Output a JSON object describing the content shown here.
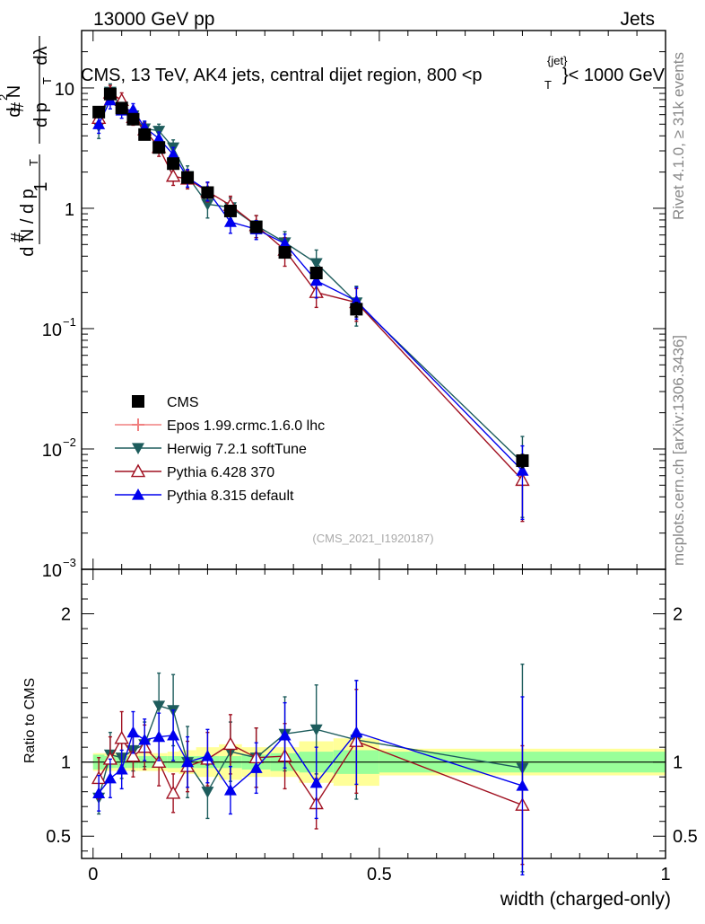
{
  "header": {
    "energy": "13000 GeV pp",
    "category": "Jets"
  },
  "side": {
    "rivet": "Rivet 4.1.0, ≥ 31k events",
    "mcplots": "mcplots.cern.ch [arXiv:1306.3436]"
  },
  "colors": {
    "cms": "#000000",
    "epos": "#f08080",
    "herwig": "#1d5c5c",
    "pythia6": "#a01020",
    "pythia8": "#0000ee",
    "band_inner": "#99ff99",
    "band_outer": "#ffff99"
  },
  "chart_data": [
    {
      "type": "scatter",
      "title_parts": [
        "CMS, 13 TeV, AK4 jets, central dijet region, 800 <p",
        "T",
        "{jet}",
        "}< 1000 GeV"
      ],
      "ylabel_parts": [
        "1",
        "d N / d p",
        "T",
        "#",
        "#",
        "d p",
        "T",
        "dλ",
        "d",
        "2",
        "N"
      ],
      "yscale": "log",
      "ylim": [
        0.001,
        30
      ],
      "xlim": [
        -0.02,
        1.0
      ],
      "yticks": [
        {
          "value": 0.001,
          "base": "10",
          "exp": "−3"
        },
        {
          "value": 0.01,
          "base": "10",
          "exp": "−2"
        },
        {
          "value": 0.1,
          "base": "10",
          "exp": "−1"
        },
        {
          "value": 1,
          "base": "1",
          "exp": ""
        },
        {
          "value": 10,
          "base": "10",
          "exp": ""
        }
      ],
      "watermark": "(CMS_2021_I1920187)",
      "x": [
        0.01,
        0.03,
        0.05,
        0.07,
        0.09,
        0.115,
        0.14,
        0.165,
        0.2,
        0.24,
        0.285,
        0.335,
        0.39,
        0.46,
        0.75
      ],
      "series": [
        {
          "name": "CMS",
          "key": "cms",
          "marker": "square",
          "values": [
            6.3,
            8.9,
            6.8,
            5.5,
            4.1,
            3.2,
            2.35,
            1.8,
            1.35,
            0.95,
            0.7,
            0.43,
            0.29,
            0.145,
            0.008
          ],
          "errors": [
            0.6,
            0.7,
            0.5,
            0.4,
            0.3,
            0.25,
            0.2,
            0.15,
            0.1,
            0.08,
            0.07,
            0.04,
            0.03,
            0.02,
            0.001
          ]
        },
        {
          "name": "Epos 1.99.crmc.1.6.0 lhc",
          "key": "epos",
          "marker": "cross",
          "values": [],
          "errors": []
        },
        {
          "name": "Herwig 7.2.1 softTune",
          "key": "herwig",
          "marker": "triangle-down",
          "values": [
            4.8,
            9.3,
            7.0,
            5.9,
            4.6,
            4.4,
            3.2,
            1.85,
            1.08,
            1.02,
            0.72,
            0.52,
            0.35,
            0.165,
            0.0077
          ],
          "errors": [
            1.0,
            1.5,
            1.0,
            0.8,
            0.6,
            0.6,
            0.5,
            0.4,
            0.25,
            0.2,
            0.15,
            0.12,
            0.1,
            0.06,
            0.005
          ]
        },
        {
          "name": "Pythia 6.428 370",
          "key": "pythia6",
          "marker": "triangle-open",
          "values": [
            5.6,
            9.1,
            7.9,
            5.7,
            4.5,
            3.2,
            1.85,
            1.75,
            1.38,
            1.06,
            0.72,
            0.45,
            0.2,
            0.165,
            0.0055
          ],
          "errors": [
            0.9,
            1.4,
            1.2,
            0.8,
            0.6,
            0.5,
            0.3,
            0.3,
            0.25,
            0.2,
            0.15,
            0.12,
            0.05,
            0.05,
            0.003
          ]
        },
        {
          "name": "Pythia 8.315 default",
          "key": "pythia8",
          "marker": "triangle-up",
          "values": [
            5.0,
            7.9,
            6.5,
            6.6,
            4.7,
            3.8,
            2.8,
            1.8,
            1.4,
            0.77,
            0.67,
            0.51,
            0.25,
            0.17,
            0.0066
          ],
          "errors": [
            0.8,
            1.2,
            0.9,
            0.8,
            0.6,
            0.5,
            0.4,
            0.3,
            0.25,
            0.15,
            0.12,
            0.1,
            0.07,
            0.05,
            0.004
          ]
        }
      ]
    },
    {
      "type": "scatter",
      "ylabel": "Ratio to CMS",
      "xlabel": "width (charged-only)",
      "ylim": [
        0.35,
        2.3
      ],
      "xlim": [
        -0.02,
        1.0
      ],
      "yticks": [
        "0.5",
        "1",
        "2"
      ],
      "xticks": [
        "0",
        "0.5",
        "1"
      ],
      "bins": [
        0.0,
        0.02,
        0.04,
        0.06,
        0.08,
        0.1,
        0.13,
        0.15,
        0.18,
        0.22,
        0.26,
        0.31,
        0.36,
        0.42,
        0.5,
        1.0
      ],
      "band_inner": [
        0.05,
        0.04,
        0.04,
        0.04,
        0.04,
        0.04,
        0.04,
        0.04,
        0.04,
        0.04,
        0.05,
        0.06,
        0.07,
        0.08,
        0.07
      ],
      "band_outer": [
        0.06,
        0.06,
        0.06,
        0.06,
        0.06,
        0.06,
        0.07,
        0.08,
        0.1,
        0.12,
        0.1,
        0.1,
        0.14,
        0.16,
        0.09
      ],
      "x": [
        0.01,
        0.03,
        0.05,
        0.07,
        0.09,
        0.115,
        0.14,
        0.165,
        0.2,
        0.24,
        0.285,
        0.335,
        0.39,
        0.46,
        0.75
      ],
      "series": [
        {
          "name": "Herwig 7.2.1 softTune",
          "key": "herwig",
          "marker": "triangle-down",
          "values": [
            0.76,
            1.05,
            1.03,
            1.08,
            1.12,
            1.38,
            1.35,
            1.0,
            0.8,
            1.07,
            1.03,
            1.19,
            1.22,
            1.15,
            0.96
          ],
          "errors": [
            0.11,
            0.15,
            0.14,
            0.14,
            0.15,
            0.22,
            0.24,
            0.24,
            0.18,
            0.2,
            0.2,
            0.25,
            0.3,
            0.4,
            0.7
          ]
        },
        {
          "name": "Pythia 6.428 370",
          "key": "pythia6",
          "marker": "triangle-open",
          "values": [
            0.89,
            1.02,
            1.16,
            1.04,
            1.1,
            1.0,
            0.79,
            0.97,
            1.02,
            1.12,
            1.03,
            1.04,
            0.72,
            1.14,
            0.71
          ],
          "errors": [
            0.14,
            0.15,
            0.18,
            0.14,
            0.15,
            0.16,
            0.13,
            0.17,
            0.18,
            0.2,
            0.2,
            0.22,
            0.17,
            0.35,
            0.4
          ]
        },
        {
          "name": "Pythia 8.315 default",
          "key": "pythia8",
          "marker": "triangle-up",
          "values": [
            0.79,
            0.89,
            0.95,
            1.2,
            1.15,
            1.17,
            1.18,
            1.0,
            1.04,
            0.81,
            0.96,
            1.18,
            0.86,
            1.2,
            0.84
          ],
          "errors": [
            0.12,
            0.13,
            0.13,
            0.14,
            0.14,
            0.16,
            0.17,
            0.17,
            0.18,
            0.16,
            0.17,
            0.22,
            0.24,
            0.35,
            0.6
          ]
        }
      ]
    }
  ]
}
